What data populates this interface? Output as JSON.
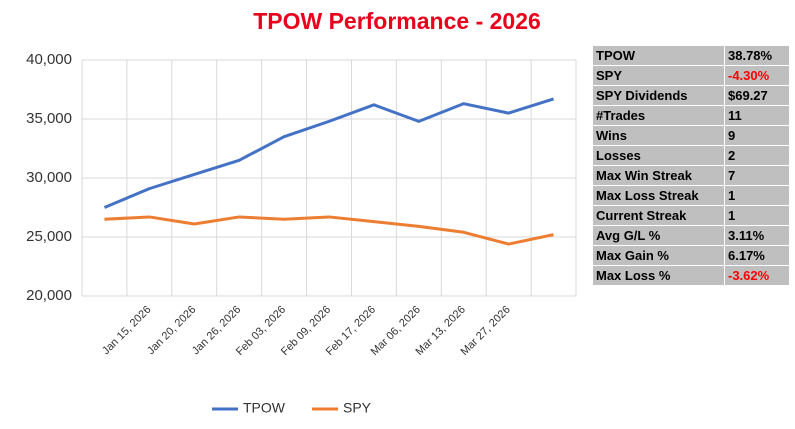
{
  "chart_data": {
    "type": "line",
    "title": "TPOW Performance - 2026",
    "title_color": "#e8001c",
    "categories": [
      null,
      "Jan 15, 2026",
      "Jan 20, 2026",
      "Jan 26, 2026",
      "Feb 03, 2026",
      "Feb 09, 2026",
      "Feb 17, 2026",
      "Mar 06, 2026",
      "Mar 13, 2026",
      "Mar 27, 2026",
      null
    ],
    "series": [
      {
        "name": "TPOW",
        "color": "#4472c4",
        "values": [
          27500,
          29100,
          30300,
          31500,
          33500,
          34800,
          36200,
          34800,
          36300,
          35500,
          36700
        ]
      },
      {
        "name": "SPY",
        "color": "#ed7d31",
        "values": [
          26500,
          26700,
          26100,
          26700,
          26500,
          26700,
          26300,
          25900,
          25400,
          24400,
          25200
        ]
      }
    ],
    "ylim": [
      20000,
      40000
    ],
    "yticks": [
      {
        "value": 20000,
        "label": "20,000"
      },
      {
        "value": 25000,
        "label": "25,000"
      },
      {
        "value": 30000,
        "label": "30,000"
      },
      {
        "value": 35000,
        "label": "35,000"
      },
      {
        "value": 40000,
        "label": "40,000"
      }
    ],
    "grid": true,
    "legend": "bottom"
  },
  "stats_table": {
    "negative_color": "#ff0000",
    "rows": [
      [
        "TPOW",
        "38.78%"
      ],
      [
        "SPY",
        "-4.30%"
      ],
      [
        "SPY Dividends",
        "$69.27"
      ],
      [
        "#Trades",
        "11"
      ],
      [
        "Wins",
        "9"
      ],
      [
        "Losses",
        "2"
      ],
      [
        "Max Win Streak",
        "7"
      ],
      [
        "Max Loss Streak",
        "1"
      ],
      [
        "Current Streak",
        "1"
      ],
      [
        "Avg G/L %",
        "3.11%"
      ],
      [
        "Max Gain %",
        "6.17%"
      ],
      [
        "Max Loss %",
        "-3.62%"
      ]
    ]
  }
}
